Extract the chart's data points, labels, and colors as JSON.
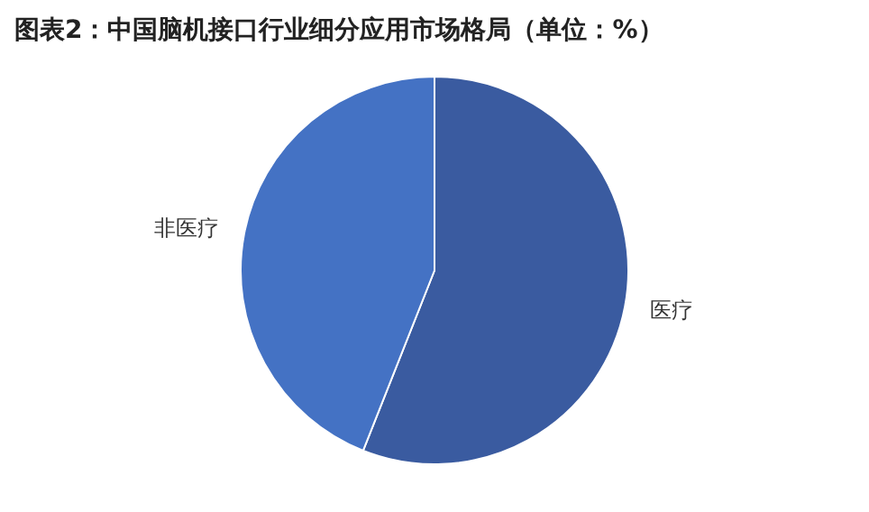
{
  "chart_data": {
    "type": "pie",
    "title": "图表2：中国脑机接口行业细分应用市场格局（单位：%）",
    "categories": [
      "医疗",
      "非医疗"
    ],
    "values": [
      56,
      44
    ],
    "colors": [
      "#3a5ba0",
      "#4472c4"
    ],
    "legend": false
  }
}
